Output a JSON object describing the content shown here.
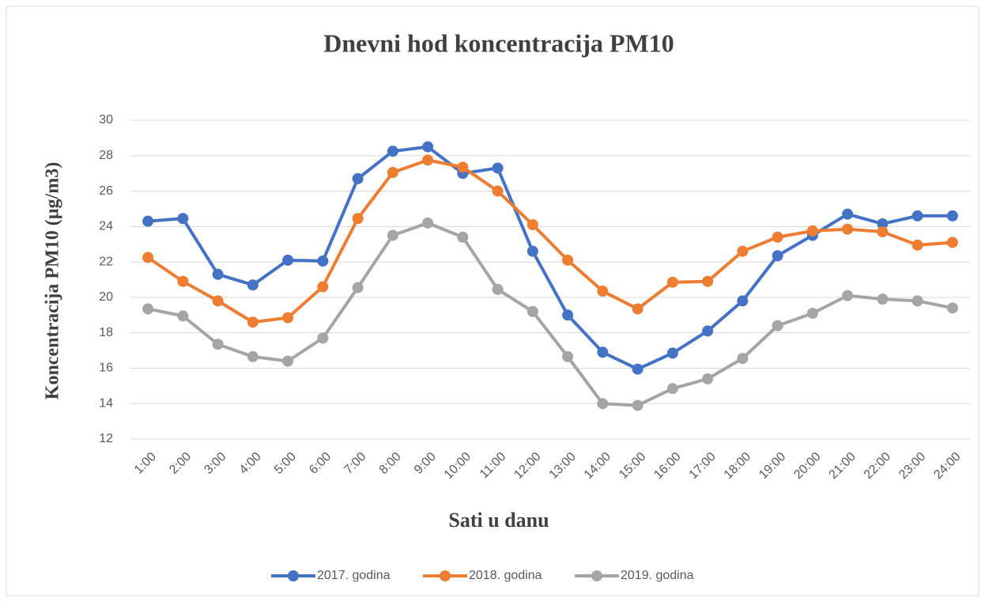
{
  "chart_data": {
    "type": "line",
    "title": "Dnevni hod koncentracija PM10",
    "x_label": "Sati u danu",
    "y_label": "Koncentracija PM10 (µg/m3)",
    "categories": [
      "1:00",
      "2:00",
      "3:00",
      "4:00",
      "5:00",
      "6:00",
      "7:00",
      "8:00",
      "9:00",
      "10:00",
      "11:00",
      "12:00",
      "13:00",
      "14:00",
      "15:00",
      "16:00",
      "17:00",
      "18:00",
      "19:00",
      "20:00",
      "21:00",
      "22:00",
      "23:00",
      "24:00"
    ],
    "series": [
      {
        "name": "2017. godina",
        "color": "#4472c4",
        "values": [
          24.3,
          24.45,
          21.3,
          20.7,
          22.1,
          22.05,
          26.7,
          28.25,
          28.5,
          27.0,
          27.3,
          22.6,
          19.0,
          16.9,
          15.95,
          16.85,
          18.1,
          19.8,
          22.35,
          23.5,
          24.7,
          24.15,
          24.6,
          24.6
        ]
      },
      {
        "name": "2018. godina",
        "color": "#ed7d31",
        "values": [
          22.25,
          20.9,
          19.8,
          18.6,
          18.85,
          20.6,
          24.45,
          27.05,
          27.75,
          27.35,
          26.0,
          24.1,
          22.1,
          20.35,
          19.35,
          20.85,
          20.9,
          22.6,
          23.4,
          23.75,
          23.85,
          23.7,
          22.95,
          23.1
        ]
      },
      {
        "name": "2019. godina",
        "color": "#a5a5a5",
        "values": [
          19.35,
          18.95,
          17.35,
          16.65,
          16.4,
          17.7,
          20.55,
          23.5,
          24.2,
          23.4,
          20.45,
          19.2,
          16.65,
          14.0,
          13.9,
          14.85,
          15.4,
          16.55,
          18.4,
          19.1,
          20.1,
          19.9,
          19.8,
          19.4
        ]
      }
    ],
    "ylim": [
      12,
      30
    ],
    "yticks": [
      12,
      14,
      16,
      18,
      20,
      22,
      24,
      26,
      28,
      30
    ],
    "grid": true,
    "legend": "bottom"
  }
}
